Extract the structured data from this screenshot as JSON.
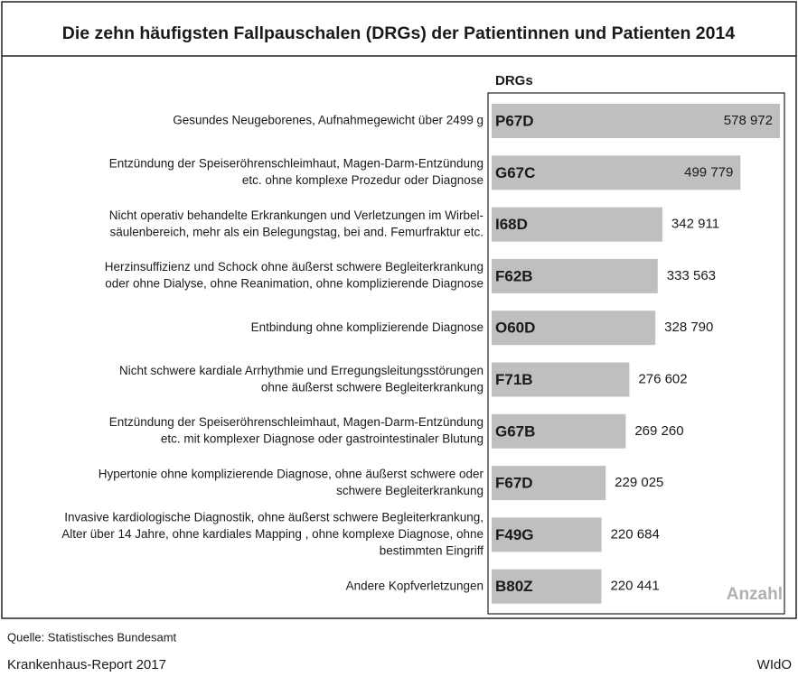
{
  "chart_data": {
    "type": "bar",
    "orientation": "horizontal",
    "title": "Die zehn häufigsten Fallpauschalen (DRGs) der Patientinnen und Patienten 2014",
    "code_header": "DRGs",
    "value_axis_label": "Anzahl",
    "categories": [
      [
        "Gesundes Neugeborenes, Aufnahmegewicht über 2499 g"
      ],
      [
        "Entzündung der Speiseröhrenschleimhaut, Magen-Darm-Entzündung",
        "etc. ohne komplexe Prozedur oder  Diagnose"
      ],
      [
        "Nicht operativ behandelte Erkrankungen und Verletzungen im Wirbel-",
        "säulenbereich,  mehr als ein Belegungstag,  bei and. Femurfraktur etc."
      ],
      [
        "Herzinsuffizienz und Schock ohne äußerst schwere Begleiterkrankung",
        "oder ohne Dialyse, ohne Reanimation, ohne komplizierende Diagnose"
      ],
      [
        "Entbindung ohne komplizierende Diagnose"
      ],
      [
        "Nicht schwere kardiale Arrhythmie und Erregungsleitungsstörungen",
        "ohne äußerst schwere Begleiterkrankung"
      ],
      [
        "Entzündung der Speiseröhrenschleimhaut, Magen-Darm-Entzündung",
        "etc. mit komplexer Diagnose  oder gastrointestinaler Blutung"
      ],
      [
        "Hypertonie ohne komplizierende Diagnose, ohne äußerst schwere oder",
        "schwere Begleiterkrankung"
      ],
      [
        "Invasive kardiologische Diagnostik, ohne äußerst schwere Begleiterkrankung,",
        "Alter über 14 Jahre,  ohne kardiales Mapping , ohne komplexe Diagnose, ohne",
        "bestimmten Eingriff"
      ],
      [
        "Andere Kopfverletzungen"
      ]
    ],
    "codes": [
      "P67D",
      "G67C",
      "I68D",
      "F62B",
      "O60D",
      "F71B",
      "G67B",
      "F67D",
      "F49G",
      "B80Z"
    ],
    "values": [
      578972,
      499779,
      342911,
      333563,
      328790,
      276602,
      269260,
      229025,
      220684,
      220441
    ],
    "value_labels": [
      "578 972",
      "499 779",
      "342 911",
      "333 563",
      "328 790",
      "276 602",
      "269 260",
      "229 025",
      "220 684",
      "220 441"
    ],
    "color": "#bfbfbf",
    "source": "Quelle: Statistisches Bundesamt",
    "publication": "Krankenhaus-Report 2017",
    "publisher": "WIdO"
  }
}
